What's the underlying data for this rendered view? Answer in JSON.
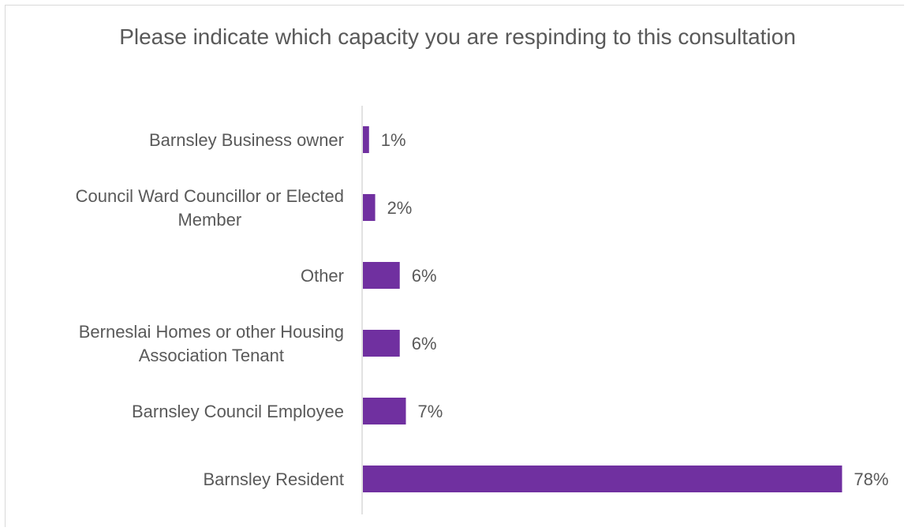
{
  "chart_data": {
    "type": "bar",
    "orientation": "horizontal",
    "title": "Please indicate which capacity you are respinding to this consultation",
    "categories": [
      "Barnsley Business owner",
      "Council Ward Councillor or Elected Member",
      "Other",
      "Berneslai Homes or other Housing Association Tenant",
      "Barnsley Council Employee",
      "Barnsley Resident"
    ],
    "category_lines": [
      [
        "Barnsley Business owner"
      ],
      [
        "Council Ward Councillor or Elected",
        "Member"
      ],
      [
        "Other"
      ],
      [
        "Berneslai Homes or other Housing",
        "Association Tenant"
      ],
      [
        "Barnsley Council Employee"
      ],
      [
        "Barnsley Resident"
      ]
    ],
    "values": [
      1,
      2,
      6,
      6,
      7,
      78
    ],
    "data_labels": [
      "1%",
      "2%",
      "6%",
      "6%",
      "7%",
      "78%"
    ],
    "unit": "%",
    "xlim": [
      0,
      80
    ],
    "grid": false,
    "legend": "none",
    "bar_color": "#7030a0",
    "text_color": "#595959",
    "axis_color": "#d9d9d9"
  }
}
